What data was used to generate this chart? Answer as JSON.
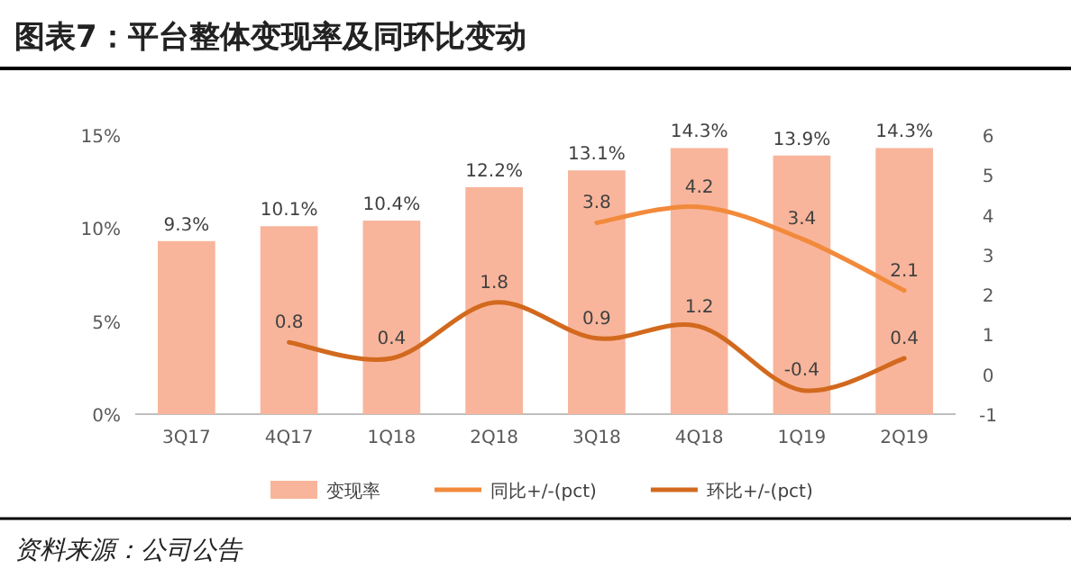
{
  "chart_data": {
    "type": "bar",
    "title": "图表7：平台整体变现率及同环比变动",
    "categories": [
      "3Q17",
      "4Q17",
      "1Q18",
      "2Q18",
      "3Q18",
      "4Q18",
      "1Q19",
      "2Q19"
    ],
    "series": [
      {
        "name": "变现率",
        "color": "#f8b59b",
        "values": [
          9.3,
          10.1,
          10.4,
          12.2,
          13.1,
          14.3,
          13.9,
          14.3
        ],
        "value_labels": [
          "9.3%",
          "10.1%",
          "10.4%",
          "12.2%",
          "13.1%",
          "14.3%",
          "13.9%",
          "14.3%"
        ]
      },
      {
        "name": "同比+/-(pct)",
        "type": "line",
        "axis": "y2",
        "color": "#f28a3c",
        "values": [
          null,
          null,
          null,
          null,
          3.8,
          4.2,
          3.4,
          2.1
        ],
        "value_labels": [
          null,
          null,
          null,
          null,
          "3.8",
          "4.2",
          "3.4",
          "2.1"
        ]
      },
      {
        "name": "环比+/-(pct)",
        "type": "line",
        "axis": "y2",
        "color": "#d2691e",
        "values": [
          null,
          0.8,
          0.4,
          1.8,
          0.9,
          1.2,
          -0.4,
          0.4
        ],
        "value_labels": [
          null,
          "0.8",
          "0.4",
          "1.8",
          "0.9",
          "1.2",
          "-0.4",
          "0.4"
        ]
      }
    ],
    "ylim": [
      0,
      15
    ],
    "yticks": [
      {
        "value": 0,
        "label": "0%"
      },
      {
        "value": 5,
        "label": "5%"
      },
      {
        "value": 10,
        "label": "10%"
      },
      {
        "value": 15,
        "label": "15%"
      }
    ],
    "y2lim": [
      -1,
      6
    ],
    "y2ticks": [
      -1,
      0,
      1,
      2,
      3,
      4,
      5,
      6
    ],
    "grid": false,
    "legend": "bottom",
    "annotations": [
      "资料来源：公司公告"
    ]
  }
}
